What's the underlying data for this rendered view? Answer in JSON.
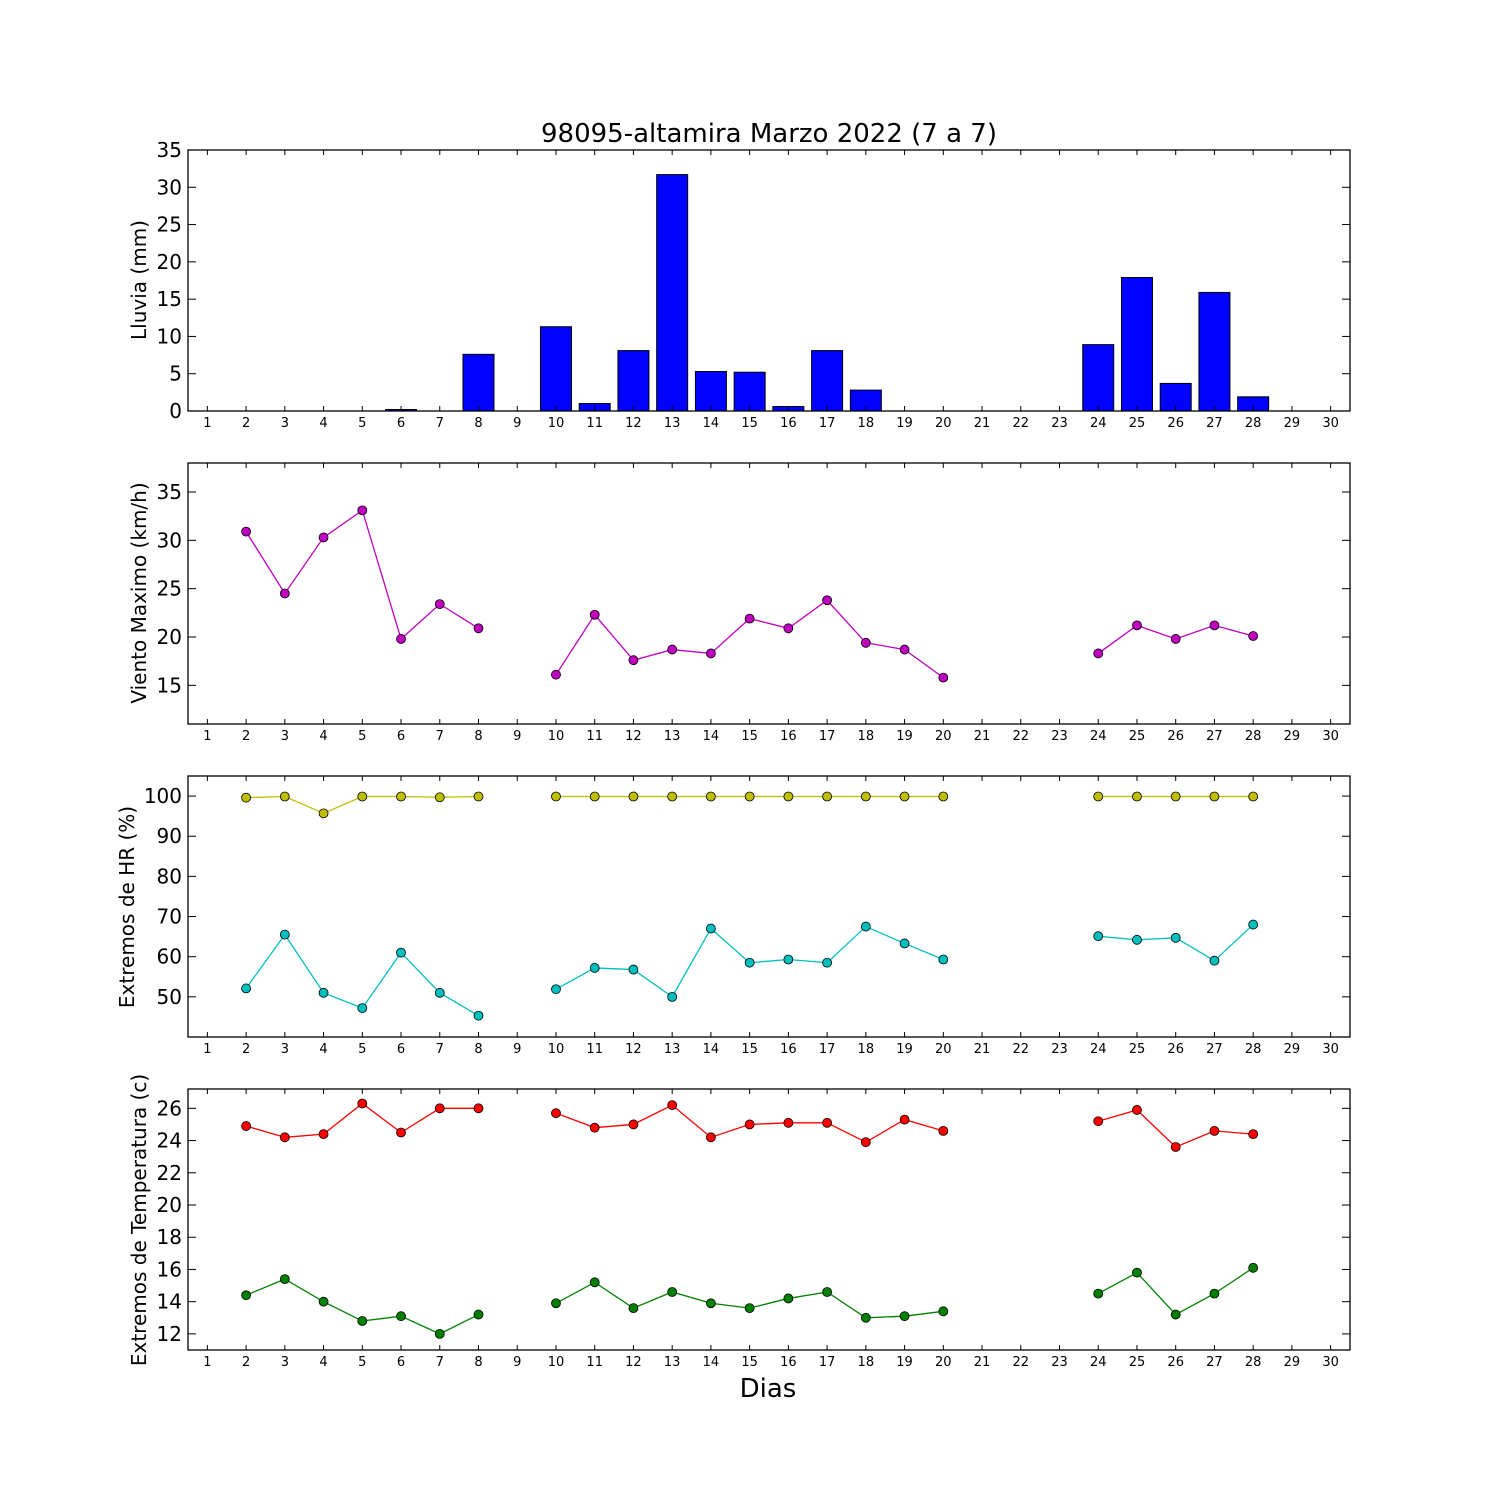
{
  "chart_data": [
    {
      "type": "bar",
      "title": "98095-altamira Marzo 2022  (7 a 7)",
      "ylabel": "Lluvia (mm)",
      "xlabel": "",
      "x": [
        1,
        2,
        3,
        4,
        5,
        6,
        7,
        8,
        9,
        10,
        11,
        12,
        13,
        14,
        15,
        16,
        17,
        18,
        19,
        20,
        21,
        22,
        23,
        24,
        25,
        26,
        27,
        28,
        29,
        30
      ],
      "ylim": [
        0,
        35
      ],
      "yticks": [
        0,
        5,
        10,
        15,
        20,
        25,
        30,
        35
      ],
      "grid": false,
      "color": "#0000ff",
      "series": [
        {
          "values": [
            null,
            0,
            0,
            0,
            0,
            0.2,
            0,
            7.6,
            null,
            11.3,
            1.0,
            8.1,
            31.7,
            5.3,
            5.2,
            0.6,
            8.1,
            2.8,
            0,
            0,
            null,
            null,
            null,
            8.9,
            17.9,
            3.7,
            15.9,
            1.9,
            null,
            null
          ]
        }
      ]
    },
    {
      "type": "line",
      "ylabel": "Viento Maximo (km/h)",
      "x": [
        1,
        2,
        3,
        4,
        5,
        6,
        7,
        8,
        9,
        10,
        11,
        12,
        13,
        14,
        15,
        16,
        17,
        18,
        19,
        20,
        21,
        22,
        23,
        24,
        25,
        26,
        27,
        28,
        29,
        30
      ],
      "ylim": [
        11,
        38
      ],
      "yticks": [
        15,
        20,
        25,
        30,
        35
      ],
      "grid": false,
      "series": [
        {
          "color": "#bf00bf",
          "values": [
            null,
            30.9,
            24.5,
            30.3,
            33.1,
            19.8,
            23.4,
            20.9,
            null,
            16.1,
            22.3,
            17.6,
            18.7,
            18.3,
            21.9,
            20.9,
            23.8,
            19.4,
            18.7,
            15.8,
            null,
            null,
            null,
            18.3,
            21.2,
            19.8,
            21.2,
            20.1,
            null,
            null
          ]
        }
      ]
    },
    {
      "type": "line",
      "ylabel": "Extremos de HR (%)",
      "x": [
        1,
        2,
        3,
        4,
        5,
        6,
        7,
        8,
        9,
        10,
        11,
        12,
        13,
        14,
        15,
        16,
        17,
        18,
        19,
        20,
        21,
        22,
        23,
        24,
        25,
        26,
        27,
        28,
        29,
        30
      ],
      "ylim": [
        40,
        105
      ],
      "yticks": [
        50,
        60,
        70,
        80,
        90,
        100
      ],
      "grid": false,
      "series": [
        {
          "color": "#bfbf00",
          "values": [
            null,
            99.6,
            99.9,
            95.7,
            99.9,
            99.9,
            99.7,
            99.9,
            null,
            99.9,
            99.9,
            99.9,
            99.9,
            99.9,
            99.9,
            99.9,
            99.9,
            99.9,
            99.9,
            99.9,
            null,
            null,
            null,
            99.9,
            99.9,
            99.9,
            99.9,
            99.9,
            null,
            null
          ]
        },
        {
          "color": "#00bfbf",
          "values": [
            null,
            52.1,
            65.5,
            51.0,
            47.2,
            61.0,
            51.0,
            45.3,
            null,
            51.9,
            57.2,
            56.8,
            50.0,
            67.0,
            58.5,
            59.3,
            58.5,
            67.5,
            63.3,
            59.3,
            null,
            null,
            null,
            65.1,
            64.2,
            64.7,
            59.0,
            68.0,
            null,
            null
          ]
        }
      ]
    },
    {
      "type": "line",
      "ylabel": "Extremos de Temperatura (c)",
      "xlabel": "Dias",
      "x": [
        1,
        2,
        3,
        4,
        5,
        6,
        7,
        8,
        9,
        10,
        11,
        12,
        13,
        14,
        15,
        16,
        17,
        18,
        19,
        20,
        21,
        22,
        23,
        24,
        25,
        26,
        27,
        28,
        29,
        30
      ],
      "ylim": [
        11,
        27.2
      ],
      "yticks": [
        12,
        14,
        16,
        18,
        20,
        22,
        24,
        26
      ],
      "grid": false,
      "series": [
        {
          "color": "#ff0000",
          "values": [
            null,
            24.9,
            24.2,
            24.4,
            26.3,
            24.5,
            26.0,
            26.0,
            null,
            25.7,
            24.8,
            25.0,
            26.2,
            24.2,
            25.0,
            25.1,
            25.1,
            23.9,
            25.3,
            24.6,
            null,
            null,
            null,
            25.2,
            25.9,
            23.6,
            24.6,
            24.4,
            null,
            null
          ]
        },
        {
          "color": "#008000",
          "values": [
            null,
            14.4,
            15.4,
            14.0,
            12.8,
            13.1,
            12.0,
            13.2,
            null,
            13.9,
            15.2,
            13.6,
            14.6,
            13.9,
            13.6,
            14.2,
            14.6,
            13.0,
            13.1,
            13.4,
            null,
            null,
            null,
            14.5,
            15.8,
            13.2,
            14.5,
            16.1,
            null,
            null
          ]
        }
      ]
    }
  ]
}
